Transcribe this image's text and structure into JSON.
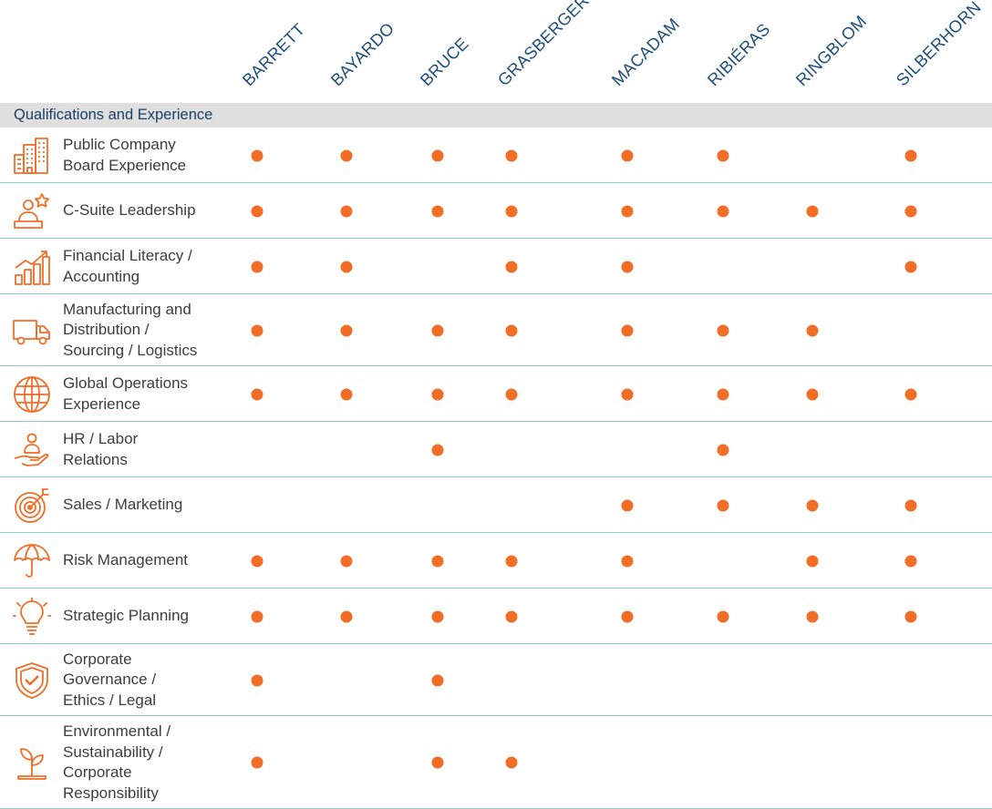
{
  "directors": [
    "BARRETT",
    "BAYARDO",
    "BRUCE",
    "GRASBERGER",
    "MACADAM",
    "RIBIÉRAS",
    "RINGBLOM",
    "SILBERHORN"
  ],
  "section_title": "Qualifications and Experience",
  "colors": {
    "accent": "#f26d26",
    "heading": "#1d4f7c",
    "divider": "#8ed0c3",
    "band": "#dfdfdf"
  },
  "rows": [
    {
      "icon": "office-buildings-icon",
      "lines": [
        "Public Company",
        "Board Experience"
      ],
      "marks": [
        true,
        true,
        true,
        true,
        true,
        true,
        false,
        true
      ]
    },
    {
      "icon": "leader-star-icon",
      "lines": [
        "C-Suite Leadership"
      ],
      "marks": [
        true,
        true,
        true,
        true,
        true,
        true,
        true,
        true
      ]
    },
    {
      "icon": "growth-chart-icon",
      "lines": [
        "Financial Literacy /",
        "Accounting"
      ],
      "marks": [
        true,
        true,
        false,
        true,
        true,
        false,
        false,
        true
      ]
    },
    {
      "icon": "delivery-truck-icon",
      "lines": [
        "Manufacturing and",
        "Distribution /",
        "Sourcing / Logistics"
      ],
      "marks": [
        true,
        true,
        true,
        true,
        true,
        true,
        true,
        false
      ]
    },
    {
      "icon": "globe-icon",
      "lines": [
        "Global Operations",
        "Experience"
      ],
      "marks": [
        true,
        true,
        true,
        true,
        true,
        true,
        true,
        true
      ]
    },
    {
      "icon": "hand-person-icon",
      "lines": [
        "HR / Labor",
        "Relations"
      ],
      "marks": [
        false,
        false,
        true,
        false,
        false,
        true,
        false,
        false
      ]
    },
    {
      "icon": "target-icon",
      "lines": [
        "Sales / Marketing"
      ],
      "marks": [
        false,
        false,
        false,
        false,
        true,
        true,
        true,
        true
      ]
    },
    {
      "icon": "umbrella-icon",
      "lines": [
        "Risk Management"
      ],
      "marks": [
        true,
        true,
        true,
        true,
        true,
        false,
        true,
        true
      ]
    },
    {
      "icon": "lightbulb-icon",
      "lines": [
        "Strategic Planning"
      ],
      "marks": [
        true,
        true,
        true,
        true,
        true,
        true,
        true,
        true
      ]
    },
    {
      "icon": "shield-check-icon",
      "lines": [
        "Corporate",
        "Governance /",
        "Ethics / Legal"
      ],
      "marks": [
        true,
        false,
        true,
        false,
        false,
        false,
        false,
        false
      ]
    },
    {
      "icon": "sprout-icon",
      "lines": [
        "Environmental /",
        "Sustainability /",
        "Corporate",
        "Responsibility"
      ],
      "marks": [
        true,
        false,
        true,
        true,
        false,
        false,
        false,
        false
      ]
    }
  ]
}
